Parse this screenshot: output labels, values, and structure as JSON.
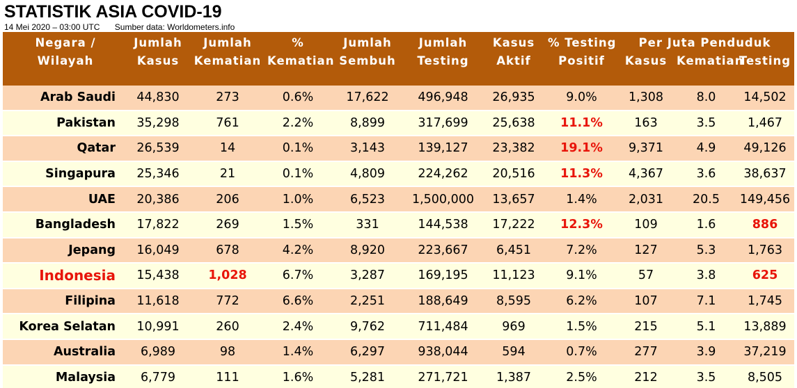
{
  "title": "STATISTIK ASIA COVID-19",
  "date": "14 Mei 2020 – 03:00 UTC",
  "source": "Sumber data: Worldometers.info",
  "colors": {
    "header_bg": "#b35b0a",
    "row_odd": "#fcd5b4",
    "row_even": "#ffffe0",
    "highlight": "#e8140a"
  },
  "headers": {
    "country": [
      "Negara /",
      "Wilayah"
    ],
    "cases": [
      "Jumlah",
      "Kasus"
    ],
    "deaths": [
      "Jumlah",
      "Kematian"
    ],
    "death_pct": [
      "%",
      "Kematian"
    ],
    "recovered": [
      "Jumlah",
      "Sembuh"
    ],
    "tests": [
      "Jumlah",
      "Testing"
    ],
    "active": [
      "Kasus",
      "Aktif"
    ],
    "positive_pct": [
      "% Testing",
      "Positif"
    ],
    "per_million_group": "Per Juta Penduduk",
    "pm_cases": "Kasus",
    "pm_deaths": "Kematian",
    "pm_tests": "Testing"
  },
  "rows": [
    {
      "country": "Arab Saudi",
      "cases": "44,830",
      "deaths": "273",
      "death_pct": "0.6%",
      "recovered": "17,622",
      "tests": "496,948",
      "active": "26,935",
      "positive_pct": "9.0%",
      "pm_cases": "1,308",
      "pm_deaths": "8.0",
      "pm_tests": "14,502"
    },
    {
      "country": "Pakistan",
      "cases": "35,298",
      "deaths": "761",
      "death_pct": "2.2%",
      "recovered": "8,899",
      "tests": "317,699",
      "active": "25,638",
      "positive_pct": "11.1%",
      "pm_cases": "163",
      "pm_deaths": "3.5",
      "pm_tests": "1,467"
    },
    {
      "country": "Qatar",
      "cases": "26,539",
      "deaths": "14",
      "death_pct": "0.1%",
      "recovered": "3,143",
      "tests": "139,127",
      "active": "23,382",
      "positive_pct": "19.1%",
      "pm_cases": "9,371",
      "pm_deaths": "4.9",
      "pm_tests": "49,126"
    },
    {
      "country": "Singapura",
      "cases": "25,346",
      "deaths": "21",
      "death_pct": "0.1%",
      "recovered": "4,809",
      "tests": "224,262",
      "active": "20,516",
      "positive_pct": "11.3%",
      "pm_cases": "4,367",
      "pm_deaths": "3.6",
      "pm_tests": "38,637"
    },
    {
      "country": "UAE",
      "cases": "20,386",
      "deaths": "206",
      "death_pct": "1.0%",
      "recovered": "6,523",
      "tests": "1,500,000",
      "active": "13,657",
      "positive_pct": "1.4%",
      "pm_cases": "2,031",
      "pm_deaths": "20.5",
      "pm_tests": "149,456"
    },
    {
      "country": "Bangladesh",
      "cases": "17,822",
      "deaths": "269",
      "death_pct": "1.5%",
      "recovered": "331",
      "tests": "144,538",
      "active": "17,222",
      "positive_pct": "12.3%",
      "pm_cases": "109",
      "pm_deaths": "1.6",
      "pm_tests": "886"
    },
    {
      "country": "Jepang",
      "cases": "16,049",
      "deaths": "678",
      "death_pct": "4.2%",
      "recovered": "8,920",
      "tests": "223,667",
      "active": "6,451",
      "positive_pct": "7.2%",
      "pm_cases": "127",
      "pm_deaths": "5.3",
      "pm_tests": "1,763"
    },
    {
      "country": "Indonesia",
      "cases": "15,438",
      "deaths": "1,028",
      "death_pct": "6.7%",
      "recovered": "3,287",
      "tests": "169,195",
      "active": "11,123",
      "positive_pct": "9.1%",
      "pm_cases": "57",
      "pm_deaths": "3.8",
      "pm_tests": "625"
    },
    {
      "country": "Filipina",
      "cases": "11,618",
      "deaths": "772",
      "death_pct": "6.6%",
      "recovered": "2,251",
      "tests": "188,649",
      "active": "8,595",
      "positive_pct": "6.2%",
      "pm_cases": "107",
      "pm_deaths": "7.1",
      "pm_tests": "1,745"
    },
    {
      "country": "Korea Selatan",
      "cases": "10,991",
      "deaths": "260",
      "death_pct": "2.4%",
      "recovered": "9,762",
      "tests": "711,484",
      "active": "969",
      "positive_pct": "1.5%",
      "pm_cases": "215",
      "pm_deaths": "5.1",
      "pm_tests": "13,889"
    },
    {
      "country": "Australia",
      "cases": "6,989",
      "deaths": "98",
      "death_pct": "1.4%",
      "recovered": "6,297",
      "tests": "938,044",
      "active": "594",
      "positive_pct": "0.7%",
      "pm_cases": "277",
      "pm_deaths": "3.9",
      "pm_tests": "37,219"
    },
    {
      "country": "Malaysia",
      "cases": "6,779",
      "deaths": "111",
      "death_pct": "1.6%",
      "recovered": "5,281",
      "tests": "271,721",
      "active": "1,387",
      "positive_pct": "2.5%",
      "pm_cases": "212",
      "pm_deaths": "3.5",
      "pm_tests": "8,505"
    }
  ],
  "red_cells": [
    [
      1,
      "positive_pct"
    ],
    [
      2,
      "positive_pct"
    ],
    [
      3,
      "positive_pct"
    ],
    [
      5,
      "positive_pct"
    ],
    [
      5,
      "pm_tests"
    ],
    [
      7,
      "deaths"
    ],
    [
      7,
      "pm_tests"
    ]
  ],
  "highlight_row": 7
}
